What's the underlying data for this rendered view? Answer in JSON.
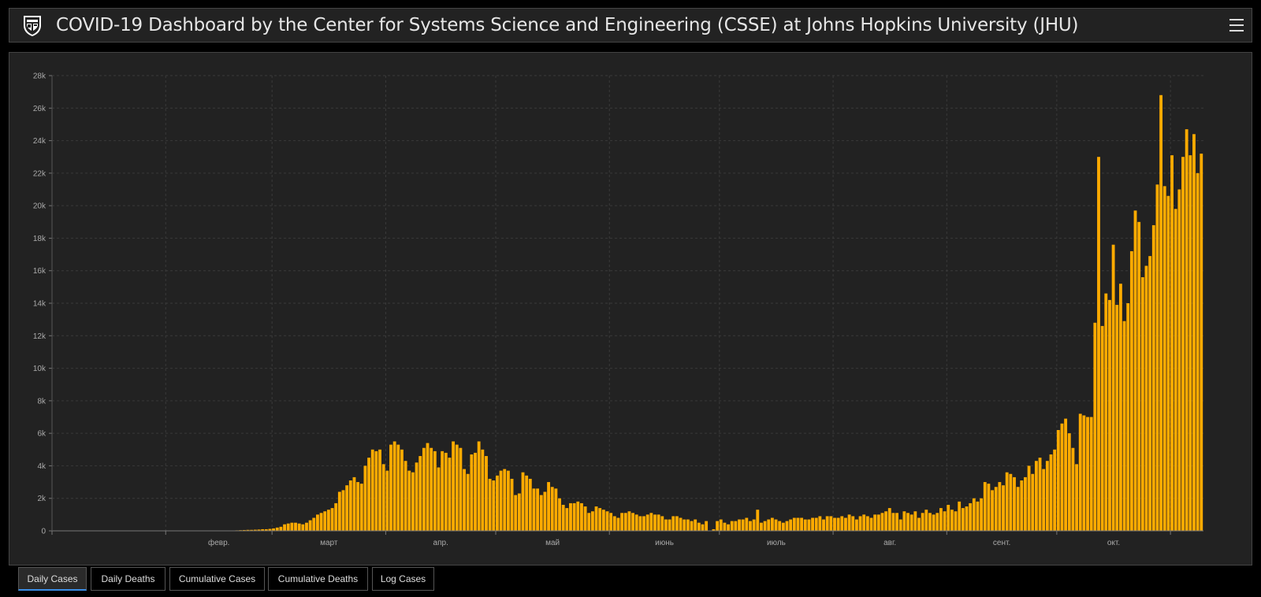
{
  "header": {
    "title": "COVID-19 Dashboard by the Center for Systems Science and Engineering (CSSE) at Johns Hopkins University (JHU)",
    "logo_icon": "jhu-shield-icon",
    "menu_icon": "hamburger-menu-icon"
  },
  "tabs": [
    {
      "label": "Daily Cases",
      "active": true
    },
    {
      "label": "Daily Deaths",
      "active": false
    },
    {
      "label": "Cumulative Cases",
      "active": false
    },
    {
      "label": "Cumulative Deaths",
      "active": false
    },
    {
      "label": "Log Cases",
      "active": false
    }
  ],
  "colors": {
    "bar": "#ffab00",
    "accent": "#3a8ee6",
    "panel": "#222222"
  },
  "chart_data": {
    "type": "bar",
    "ylim": [
      0,
      28000
    ],
    "yticks": [
      "0",
      "2k",
      "4k",
      "6k",
      "8k",
      "10k",
      "12k",
      "14k",
      "16k",
      "18k",
      "20k",
      "22k",
      "24k",
      "26k",
      "28k"
    ],
    "xticks": [
      "февр.",
      "март",
      "апр.",
      "май",
      "июнь",
      "июль",
      "авг.",
      "сент.",
      "окт."
    ],
    "grid": true,
    "values": [
      0,
      0,
      0,
      0,
      0,
      0,
      0,
      0,
      0,
      0,
      0,
      0,
      0,
      0,
      0,
      0,
      0,
      0,
      0,
      0,
      0,
      0,
      0,
      0,
      0,
      0,
      0,
      0,
      0,
      0,
      0,
      0,
      0,
      0,
      0,
      0,
      0,
      0,
      0,
      0,
      0,
      0,
      0,
      0,
      0,
      0,
      0,
      0,
      0,
      0,
      30,
      40,
      50,
      60,
      60,
      70,
      80,
      100,
      100,
      120,
      150,
      200,
      250,
      400,
      450,
      500,
      500,
      450,
      400,
      500,
      650,
      800,
      1000,
      1100,
      1200,
      1300,
      1400,
      1700,
      2400,
      2500,
      2800,
      3100,
      3300,
      3000,
      2900,
      4000,
      4500,
      5000,
      4900,
      5000,
      4100,
      3700,
      5300,
      5500,
      5300,
      5000,
      4300,
      3700,
      3600,
      4200,
      4600,
      5100,
      5400,
      5100,
      4900,
      3900,
      4900,
      4800,
      4500,
      5500,
      5300,
      5100,
      3800,
      3500,
      4700,
      4800,
      5500,
      5000,
      4600,
      3200,
      3100,
      3400,
      3700,
      3800,
      3700,
      3200,
      2200,
      2300,
      3600,
      3400,
      3200,
      2600,
      2600,
      2200,
      2400,
      3000,
      2700,
      2600,
      2000,
      1600,
      1400,
      1700,
      1700,
      1800,
      1700,
      1500,
      1100,
      1200,
      1500,
      1400,
      1300,
      1200,
      1100,
      900,
      800,
      1100,
      1100,
      1200,
      1100,
      1000,
      900,
      900,
      1000,
      1100,
      1000,
      1000,
      900,
      700,
      700,
      900,
      900,
      800,
      700,
      700,
      600,
      700,
      500,
      400,
      600,
      0,
      100,
      600,
      700,
      500,
      400,
      600,
      600,
      700,
      700,
      800,
      600,
      700,
      1300,
      500,
      600,
      700,
      800,
      700,
      600,
      500,
      600,
      700,
      800,
      800,
      800,
      700,
      700,
      800,
      800,
      900,
      700,
      900,
      900,
      800,
      800,
      900,
      800,
      1000,
      900,
      700,
      900,
      1000,
      900,
      800,
      1000,
      1000,
      1100,
      1200,
      1400,
      1100,
      1100,
      700,
      1200,
      1100,
      1000,
      1200,
      800,
      1100,
      1300,
      1100,
      1000,
      1100,
      1400,
      1200,
      1600,
      1300,
      1200,
      1800,
      1400,
      1500,
      1700,
      2000,
      1800,
      2000,
      3000,
      2900,
      2500,
      2700,
      3000,
      2800,
      3600,
      3500,
      3300,
      2700,
      3100,
      3300,
      4000,
      3500,
      4300,
      4500,
      3800,
      4300,
      4700,
      5000,
      6200,
      6600,
      6900,
      6000,
      5100,
      4100,
      7200,
      7100,
      7000,
      7000,
      12800,
      23000,
      12600,
      14600,
      14200,
      17600,
      13900,
      15200,
      12900,
      14000,
      17200,
      19700,
      19000,
      15600,
      16300,
      16900,
      18800,
      21300,
      26800,
      21200,
      20600,
      23100,
      19800,
      21000,
      23000,
      24700,
      23100,
      24400,
      22000,
      23200
    ]
  }
}
